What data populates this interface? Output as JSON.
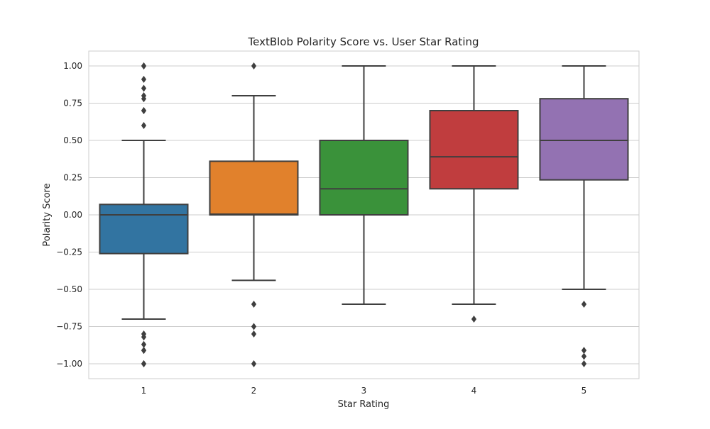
{
  "chart_data": {
    "type": "box",
    "title": "TextBlob Polarity Score vs. User Star Rating",
    "xlabel": "Star Rating",
    "ylabel": "Polarity Score",
    "categories": [
      "1",
      "2",
      "3",
      "4",
      "5"
    ],
    "ylim": [
      -1.1,
      1.1
    ],
    "yticks": [
      1.0,
      0.75,
      0.5,
      0.25,
      0.0,
      -0.25,
      -0.5,
      -0.75,
      -1.0
    ],
    "ytick_labels": [
      "1.00",
      "0.75",
      "0.50",
      "0.25",
      "0.00",
      "−0.25",
      "−0.50",
      "−0.75",
      "−1.00"
    ],
    "grid": "horizontal",
    "boxes": [
      {
        "category": "1",
        "color": "#3274a1",
        "whisker_low": -0.7,
        "q1": -0.26,
        "median": 0.0,
        "q3": 0.07,
        "whisker_high": 0.5,
        "outliers": [
          1.0,
          1.0,
          0.91,
          0.85,
          0.8,
          0.78,
          0.7,
          0.7,
          0.6,
          -0.8,
          -0.82,
          -0.87,
          -0.91,
          -0.91,
          -1.0,
          -1.0
        ]
      },
      {
        "category": "2",
        "color": "#e1812c",
        "whisker_low": -0.44,
        "q1": 0.0,
        "median": 0.005,
        "q3": 0.36,
        "whisker_high": 0.8,
        "outliers": [
          1.0,
          -0.6,
          -0.75,
          -0.8,
          -1.0
        ]
      },
      {
        "category": "3",
        "color": "#3a923a",
        "whisker_low": -0.6,
        "q1": 0.0,
        "median": 0.175,
        "q3": 0.5,
        "whisker_high": 1.0,
        "outliers": []
      },
      {
        "category": "4",
        "color": "#c03d3e",
        "whisker_low": -0.6,
        "q1": 0.175,
        "median": 0.39,
        "q3": 0.7,
        "whisker_high": 1.0,
        "outliers": [
          -0.7
        ]
      },
      {
        "category": "5",
        "color": "#9372b2",
        "whisker_low": -0.5,
        "q1": 0.235,
        "median": 0.5,
        "q3": 0.78,
        "whisker_high": 1.0,
        "outliers": [
          -0.6,
          -0.91,
          -0.95,
          -1.0
        ]
      }
    ],
    "colors": {
      "line": "#3f3f3f",
      "grid": "#cccccc",
      "frame": "#cccccc",
      "text": "#262626"
    }
  }
}
